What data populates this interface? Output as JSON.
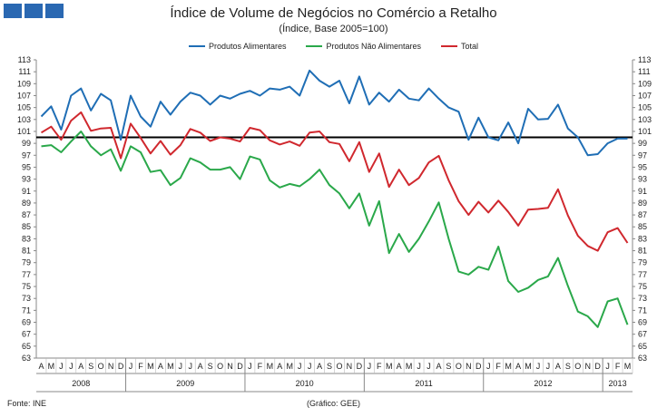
{
  "header": {
    "logo_name": "logo"
  },
  "footer": {
    "source": "Fonte: INE",
    "credit": "(Gráfico: GEE)"
  },
  "chart_data": {
    "type": "line",
    "title": "Índice de Volume de Negócios no Comércio a Retalho",
    "subtitle": "(Índice, Base 2005=100)",
    "xlabel": "",
    "ylabel": "",
    "ylim": [
      63,
      113
    ],
    "yticks": [
      63,
      65,
      67,
      69,
      71,
      73,
      75,
      77,
      79,
      81,
      83,
      85,
      87,
      89,
      91,
      93,
      95,
      97,
      99,
      101,
      103,
      105,
      107,
      109,
      111,
      113
    ],
    "grid": false,
    "reference_line": 100,
    "legend_position": "top-center",
    "month_labels": [
      "A",
      "M",
      "J",
      "J",
      "A",
      "S",
      "O",
      "N",
      "D",
      "J",
      "F",
      "M",
      "A",
      "M",
      "J",
      "J",
      "A",
      "S",
      "O",
      "N",
      "D",
      "J",
      "F",
      "M",
      "A",
      "M",
      "J",
      "J",
      "A",
      "S",
      "O",
      "N",
      "D",
      "J",
      "F",
      "M",
      "A",
      "M",
      "J",
      "J",
      "A",
      "S",
      "O",
      "N",
      "D",
      "J",
      "F",
      "M",
      "A",
      "M",
      "J",
      "J",
      "A",
      "S",
      "O",
      "N",
      "D",
      "J",
      "F",
      "M"
    ],
    "years": [
      {
        "label": "2008",
        "start": 0,
        "end": 8
      },
      {
        "label": "2009",
        "start": 9,
        "end": 20
      },
      {
        "label": "2010",
        "start": 21,
        "end": 32
      },
      {
        "label": "2011",
        "start": 33,
        "end": 44
      },
      {
        "label": "2012",
        "start": 45,
        "end": 56
      },
      {
        "label": "2013",
        "start": 57,
        "end": 59
      }
    ],
    "series": [
      {
        "name": "Produtos Alimentares",
        "color": "#1f6eb5",
        "values": [
          103.5,
          105.2,
          101.3,
          107.0,
          108.2,
          104.5,
          107.3,
          106.2,
          99.6,
          107.0,
          103.5,
          101.8,
          106.0,
          103.8,
          106.0,
          107.5,
          107.0,
          105.5,
          107.0,
          106.5,
          107.3,
          107.8,
          107.0,
          108.2,
          108.0,
          108.5,
          107.0,
          111.2,
          109.5,
          108.5,
          109.5,
          105.7,
          110.2,
          105.5,
          107.5,
          106.0,
          108.0,
          106.5,
          106.2,
          108.2,
          106.5,
          105.0,
          104.3,
          99.6,
          103.3,
          100.0,
          99.5,
          102.5,
          99.0,
          104.8,
          103.0,
          103.1,
          105.5,
          101.5,
          100.0,
          97.0,
          97.2,
          99.0,
          99.8,
          99.8
        ]
      },
      {
        "name": "Produtos Não Alimentares",
        "color": "#2aa84a",
        "values": [
          98.5,
          98.7,
          97.5,
          99.3,
          101.0,
          98.5,
          97.0,
          98.0,
          94.4,
          98.5,
          97.5,
          94.2,
          94.5,
          92.0,
          93.2,
          96.5,
          95.8,
          94.6,
          94.6,
          95.0,
          93.0,
          96.8,
          96.3,
          92.8,
          91.6,
          92.2,
          91.8,
          93.0,
          94.6,
          92.0,
          90.6,
          88.1,
          90.6,
          85.2,
          89.3,
          80.6,
          83.8,
          80.8,
          83.0,
          85.9,
          89.1,
          83.0,
          77.5,
          77.0,
          78.3,
          77.8,
          81.7,
          75.9,
          74.1,
          74.8,
          76.1,
          76.7,
          79.8,
          75.1,
          70.8,
          70.0,
          68.2,
          72.5,
          73.0,
          68.6
        ]
      },
      {
        "name": "Total",
        "color": "#d0282e",
        "values": [
          100.8,
          101.8,
          99.6,
          102.8,
          104.2,
          101.1,
          101.5,
          101.6,
          96.5,
          102.3,
          99.9,
          97.3,
          99.4,
          97.1,
          98.7,
          101.4,
          100.8,
          99.4,
          100.0,
          99.8,
          99.3,
          101.6,
          101.2,
          99.5,
          98.8,
          99.3,
          98.6,
          100.8,
          101.0,
          99.2,
          98.9,
          96.0,
          99.2,
          94.2,
          97.3,
          91.7,
          94.6,
          92.0,
          93.2,
          95.8,
          96.9,
          92.8,
          89.3,
          87.0,
          89.2,
          87.4,
          89.4,
          87.5,
          85.2,
          87.9,
          88.0,
          88.2,
          91.3,
          86.9,
          83.5,
          81.8,
          81.0,
          84.1,
          84.8,
          82.3
        ]
      }
    ]
  }
}
